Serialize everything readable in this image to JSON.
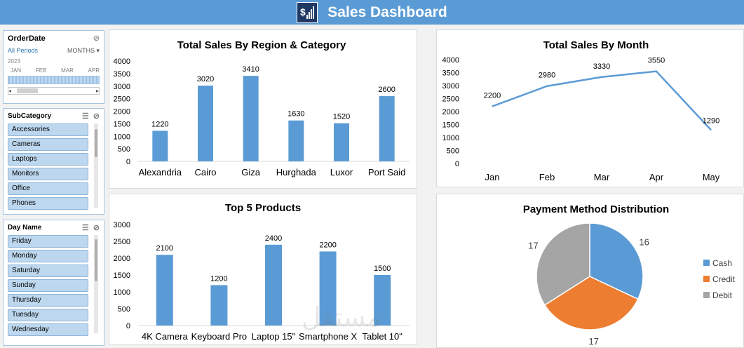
{
  "header": {
    "title": "Sales Dashboard",
    "logo_icon": "dollar-chart-icon"
  },
  "timeline": {
    "title": "OrderDate",
    "periods": "All Periods",
    "unit": "MONTHS",
    "year": "2023",
    "months": [
      "JAN",
      "FEB",
      "MAR",
      "APR"
    ]
  },
  "subcategory": {
    "title": "SubCategory",
    "items": [
      "Accessories",
      "Cameras",
      "Laptops",
      "Monitors",
      "Office",
      "Phones"
    ]
  },
  "dayname": {
    "title": "Day Name",
    "items": [
      "Friday",
      "Monday",
      "Saturday",
      "Sunday",
      "Thursday",
      "Tuesday",
      "Wednesday"
    ]
  },
  "watermark": "مستقل",
  "colors": {
    "blue": "#5b9bd5",
    "orange": "#ed7d31",
    "gray": "#a5a5a5"
  },
  "chart_data": [
    {
      "type": "bar",
      "title": "Total Sales By Region & Category",
      "categories": [
        "Alexandria",
        "Cairo",
        "Giza",
        "Hurghada",
        "Luxor",
        "Port Said"
      ],
      "values": [
        1220,
        3020,
        3410,
        1630,
        1520,
        2600
      ],
      "ylim": [
        0,
        4000
      ],
      "yticks": [
        0,
        500,
        1000,
        1500,
        2000,
        2500,
        3000,
        3500,
        4000
      ],
      "grid": false
    },
    {
      "type": "line",
      "title": "Total Sales By Month",
      "categories": [
        "Jan",
        "Feb",
        "Mar",
        "Apr",
        "May"
      ],
      "values": [
        2200,
        2980,
        3330,
        3550,
        1290
      ],
      "ylim": [
        0,
        4000
      ],
      "yticks": [
        0,
        500,
        1000,
        1500,
        2000,
        2500,
        3000,
        3500,
        4000
      ],
      "grid": false
    },
    {
      "type": "bar",
      "title": "Top 5 Products",
      "categories": [
        "4K Camera",
        "Keyboard Pro",
        "Laptop 15\"",
        "Smartphone X",
        "Tablet 10\""
      ],
      "values": [
        2100,
        1200,
        2400,
        2200,
        1500
      ],
      "ylim": [
        0,
        3000
      ],
      "yticks": [
        0,
        500,
        1000,
        1500,
        2000,
        2500,
        3000
      ],
      "grid": false
    },
    {
      "type": "pie",
      "title": "Payment Method Distribution",
      "labels": [
        "Cash",
        "Credit",
        "Debit"
      ],
      "values": [
        16,
        17,
        17
      ],
      "colors": [
        "#5b9bd5",
        "#ed7d31",
        "#a5a5a5"
      ],
      "legend": "right"
    }
  ]
}
